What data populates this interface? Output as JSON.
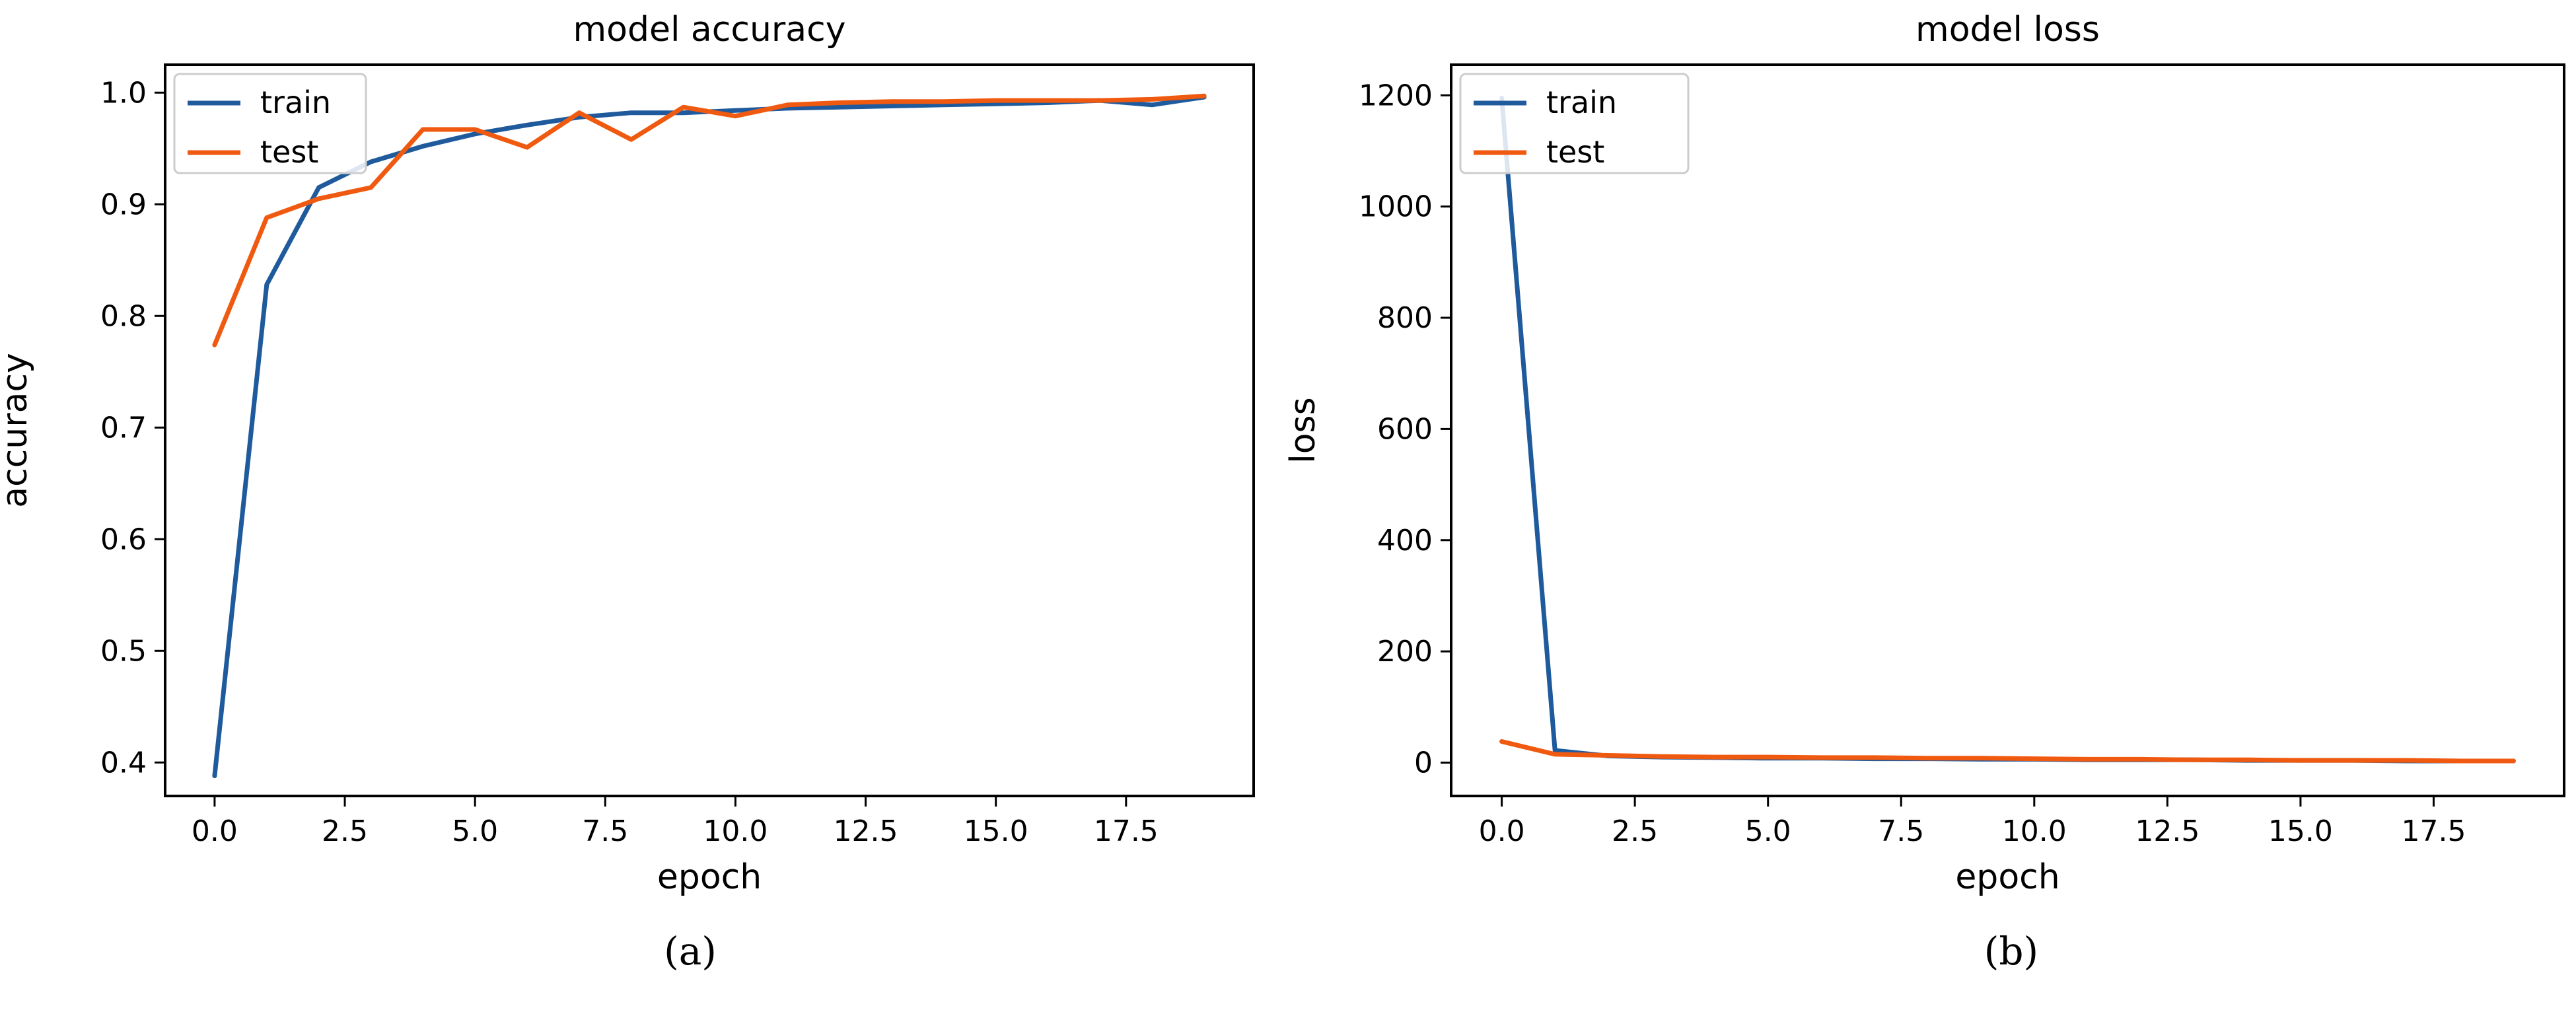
{
  "chart_data": [
    {
      "type": "line",
      "title": "model accuracy",
      "xlabel": "epoch",
      "ylabel": "accuracy",
      "caption": "(a)",
      "xlim": [
        -0.95,
        19.95
      ],
      "ylim": [
        0.37,
        1.025
      ],
      "xticks": [
        0,
        2.5,
        5,
        7.5,
        10,
        12.5,
        15,
        17.5
      ],
      "xtick_labels": [
        "0.0",
        "2.5",
        "5.0",
        "7.5",
        "10.0",
        "12.5",
        "15.0",
        "17.5"
      ],
      "yticks": [
        0.4,
        0.5,
        0.6,
        0.7,
        0.8,
        0.9,
        1.0
      ],
      "ytick_labels": [
        "0.4",
        "0.5",
        "0.6",
        "0.7",
        "0.8",
        "0.9",
        "1.0"
      ],
      "grid": false,
      "legend": "upper left",
      "x": [
        0,
        1,
        2,
        3,
        4,
        5,
        6,
        7,
        8,
        9,
        10,
        11,
        12,
        13,
        14,
        15,
        16,
        17,
        18,
        19
      ],
      "series": [
        {
          "name": "train",
          "color": "#1f5b9c",
          "values": [
            0.388,
            0.828,
            0.915,
            0.938,
            0.952,
            0.963,
            0.971,
            0.978,
            0.982,
            0.982,
            0.984,
            0.986,
            0.987,
            0.988,
            0.989,
            0.99,
            0.991,
            0.993,
            0.989,
            0.996
          ]
        },
        {
          "name": "test",
          "color": "#f05a10",
          "values": [
            0.774,
            0.888,
            0.905,
            0.915,
            0.967,
            0.967,
            0.951,
            0.982,
            0.958,
            0.987,
            0.979,
            0.989,
            0.991,
            0.992,
            0.992,
            0.993,
            0.993,
            0.993,
            0.994,
            0.997
          ]
        }
      ]
    },
    {
      "type": "line",
      "title": "model loss",
      "xlabel": "epoch",
      "ylabel": "loss",
      "caption": "(b)",
      "xlim": [
        -0.95,
        19.95
      ],
      "ylim": [
        -60,
        1255
      ],
      "xticks": [
        0,
        2.5,
        5,
        7.5,
        10,
        12.5,
        15,
        17.5
      ],
      "xtick_labels": [
        "0.0",
        "2.5",
        "5.0",
        "7.5",
        "10.0",
        "12.5",
        "15.0",
        "17.5"
      ],
      "yticks": [
        0,
        200,
        400,
        600,
        800,
        1000,
        1200
      ],
      "ytick_labels": [
        "0",
        "200",
        "400",
        "600",
        "800",
        "1000",
        "1200"
      ],
      "grid": false,
      "legend": "upper left",
      "x": [
        0,
        1,
        2,
        3,
        4,
        5,
        6,
        7,
        8,
        9,
        10,
        11,
        12,
        13,
        14,
        15,
        16,
        17,
        18,
        19
      ],
      "series": [
        {
          "name": "train",
          "color": "#1f5b9c",
          "values": [
            1195,
            22,
            12,
            10,
            9,
            8,
            8,
            7,
            7,
            6,
            6,
            5,
            5,
            5,
            4,
            4,
            4,
            3,
            3,
            3
          ]
        },
        {
          "name": "test",
          "color": "#f05a10",
          "values": [
            38,
            15,
            13,
            11,
            10,
            10,
            9,
            9,
            8,
            8,
            7,
            6,
            6,
            5,
            5,
            4,
            4,
            4,
            3,
            3
          ]
        }
      ]
    }
  ]
}
